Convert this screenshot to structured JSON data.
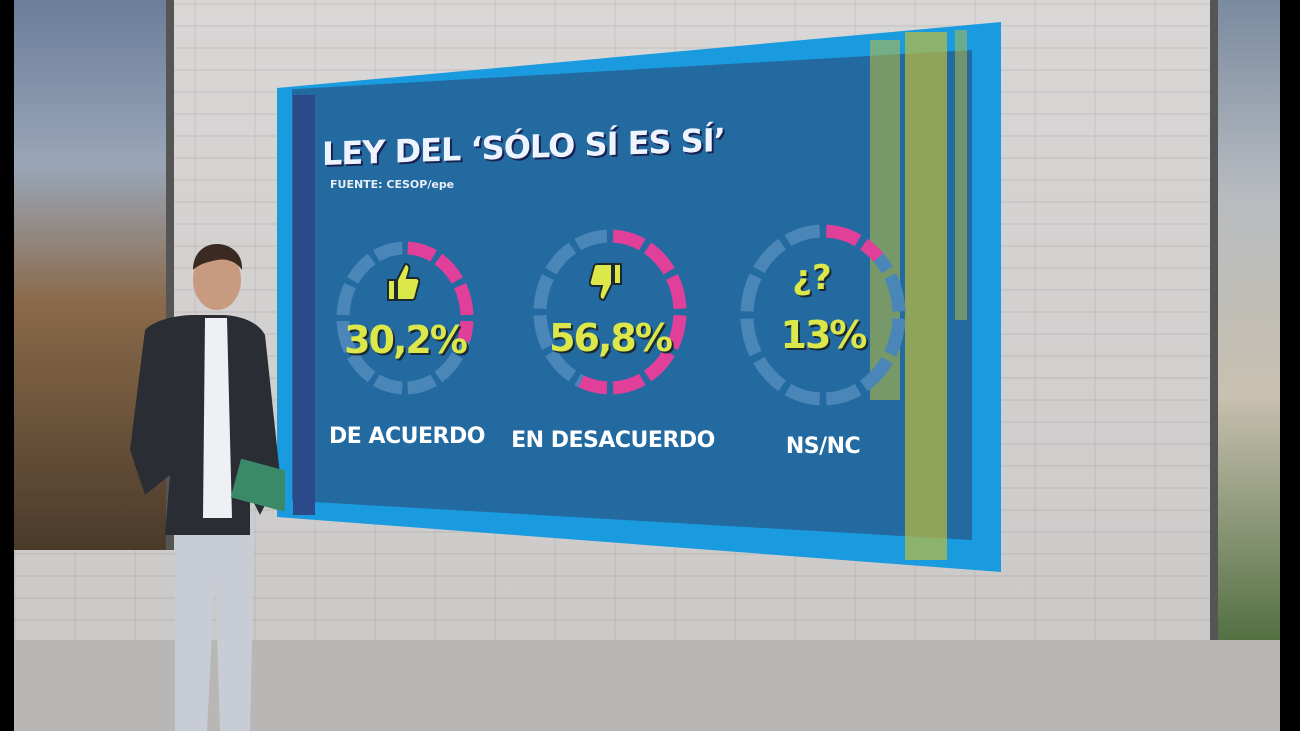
{
  "screen": {
    "title": "LEY DEL ‘SÓLO SÍ ES SÍ’",
    "source": "FUENTE: CESOP/epe"
  },
  "chart_data": {
    "type": "pie",
    "style": "donut",
    "title": "LEY DEL ‘SÓLO SÍ ES SÍ’",
    "source": "FUENTE: CESOP/epe",
    "categories": [
      "DE ACUERDO",
      "EN DESACUERDO",
      "NS/NC"
    ],
    "values": [
      30.2,
      56.8,
      13
    ],
    "value_labels": [
      "30,2%",
      "56,8%",
      "13%"
    ],
    "icons": [
      "thumbs-up-icon",
      "thumbs-down-icon",
      "question-icon"
    ],
    "icon_text": [
      "",
      "",
      "¿?"
    ],
    "colors": {
      "filled": "#e0409a",
      "empty": "#4a86b8",
      "value_text": "#dce84a"
    }
  }
}
